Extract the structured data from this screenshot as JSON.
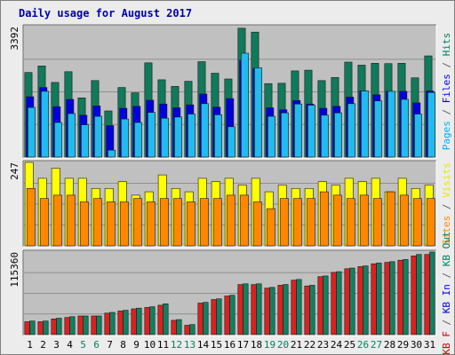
{
  "title": "Daily usage for August 2017",
  "chart_data": [
    {
      "type": "bar",
      "panel": "top",
      "ymax_label": "3392",
      "ylim": [
        0,
        3392
      ],
      "side_labels": [
        {
          "text": "Pages",
          "color": "#00aaff"
        },
        {
          "text": " / ",
          "color": "#606060"
        },
        {
          "text": "Files",
          "color": "#0000ee"
        },
        {
          "text": " / ",
          "color": "#606060"
        },
        {
          "text": "Hits",
          "color": "#007f5f"
        }
      ],
      "series": [
        {
          "name": "Hits",
          "color": "#107a5a",
          "values": [
            2200,
            2370,
            1940,
            2220,
            1540,
            1990,
            1200,
            1810,
            1670,
            2450,
            2010,
            1840,
            1970,
            2480,
            2180,
            2030,
            3350,
            3250,
            1910,
            1920,
            2240,
            2260,
            1990,
            2070,
            2470,
            2390,
            2440,
            2430,
            2440,
            2060,
            2630
          ]
        },
        {
          "name": "Files",
          "color": "#0000dd",
          "values": [
            1570,
            1810,
            1310,
            1500,
            1090,
            1330,
            820,
            1270,
            1320,
            1480,
            1380,
            1280,
            1360,
            1640,
            1300,
            1520,
            2520,
            2300,
            1280,
            1230,
            1470,
            1380,
            1270,
            1320,
            1560,
            1720,
            1620,
            1710,
            1710,
            1410,
            1720
          ]
        },
        {
          "name": "Pages",
          "color": "#22bbee",
          "values": [
            1290,
            1710,
            900,
            1130,
            840,
            1060,
            180,
            990,
            900,
            1160,
            1010,
            1040,
            1120,
            1390,
            1100,
            790,
            2700,
            2320,
            1060,
            1150,
            1380,
            1350,
            1090,
            1150,
            1390,
            1720,
            1460,
            1710,
            1500,
            1120,
            1680
          ]
        }
      ]
    },
    {
      "type": "bar",
      "panel": "middle",
      "ymax_label": "247",
      "ylim": [
        0,
        247
      ],
      "side_labels": [
        {
          "text": "Sites",
          "color": "#ff8800"
        },
        {
          "text": " / ",
          "color": "#606060"
        },
        {
          "text": "Visits",
          "color": "#e8e800"
        }
      ],
      "series": [
        {
          "name": "Visits",
          "color": "#ffff00",
          "values": [
            247,
            200,
            230,
            200,
            200,
            170,
            170,
            190,
            150,
            160,
            210,
            170,
            160,
            200,
            190,
            200,
            180,
            200,
            160,
            180,
            170,
            170,
            190,
            180,
            200,
            190,
            200,
            160,
            200,
            170,
            180
          ]
        },
        {
          "name": "Sites",
          "color": "#ff8800",
          "values": [
            170,
            140,
            150,
            150,
            130,
            140,
            130,
            130,
            140,
            130,
            140,
            140,
            130,
            140,
            140,
            150,
            150,
            130,
            110,
            140,
            140,
            140,
            160,
            150,
            140,
            150,
            140,
            160,
            150,
            140,
            140
          ]
        }
      ]
    },
    {
      "type": "bar",
      "panel": "bottom",
      "ymax_label": "115360",
      "ylim": [
        0,
        115360
      ],
      "side_labels": [
        {
          "text": "KB F",
          "color": "#cc0000"
        },
        {
          "text": " / ",
          "color": "#606060"
        },
        {
          "text": "KB In",
          "color": "#0000ee"
        },
        {
          "text": " / ",
          "color": "#606060"
        },
        {
          "text": "KB Out",
          "color": "#007f5f"
        }
      ],
      "series": [
        {
          "name": "KB F",
          "color": "#dd2020",
          "values": [
            18000,
            18000,
            22000,
            24000,
            26000,
            26000,
            30000,
            33000,
            36000,
            38000,
            41000,
            20000,
            13000,
            44000,
            49000,
            54000,
            70000,
            70000,
            65000,
            69000,
            76000,
            68000,
            81000,
            87000,
            92000,
            95000,
            99000,
            101000,
            104000,
            110000,
            112000
          ]
        },
        {
          "name": "KB Out",
          "color": "#108060",
          "values": [
            19000,
            19000,
            23000,
            25000,
            26000,
            26000,
            31000,
            34000,
            37000,
            39000,
            43000,
            21000,
            14000,
            45000,
            50000,
            55000,
            71000,
            71000,
            66000,
            70000,
            77000,
            69000,
            82000,
            88000,
            93000,
            96000,
            100000,
            102000,
            105000,
            112000,
            115360
          ]
        }
      ]
    }
  ],
  "days": [
    {
      "label": "1",
      "weekend": false
    },
    {
      "label": "2",
      "weekend": false
    },
    {
      "label": "3",
      "weekend": false
    },
    {
      "label": "4",
      "weekend": false
    },
    {
      "label": "5",
      "weekend": true
    },
    {
      "label": "6",
      "weekend": true
    },
    {
      "label": "7",
      "weekend": false
    },
    {
      "label": "8",
      "weekend": false
    },
    {
      "label": "9",
      "weekend": false
    },
    {
      "label": "10",
      "weekend": false
    },
    {
      "label": "11",
      "weekend": false
    },
    {
      "label": "12",
      "weekend": true
    },
    {
      "label": "13",
      "weekend": true
    },
    {
      "label": "14",
      "weekend": false
    },
    {
      "label": "15",
      "weekend": false
    },
    {
      "label": "16",
      "weekend": false
    },
    {
      "label": "17",
      "weekend": false
    },
    {
      "label": "18",
      "weekend": false
    },
    {
      "label": "19",
      "weekend": true
    },
    {
      "label": "20",
      "weekend": true
    },
    {
      "label": "21",
      "weekend": false
    },
    {
      "label": "22",
      "weekend": false
    },
    {
      "label": "23",
      "weekend": false
    },
    {
      "label": "24",
      "weekend": false
    },
    {
      "label": "25",
      "weekend": false
    },
    {
      "label": "26",
      "weekend": true
    },
    {
      "label": "27",
      "weekend": true
    },
    {
      "label": "28",
      "weekend": false
    },
    {
      "label": "29",
      "weekend": false
    },
    {
      "label": "30",
      "weekend": false
    },
    {
      "label": "31",
      "weekend": false
    }
  ],
  "colors": {
    "weekday_label": "#000000",
    "weekend_label": "#007f5f",
    "panel_bg": "#c0c0c0",
    "grid": "#909090"
  }
}
